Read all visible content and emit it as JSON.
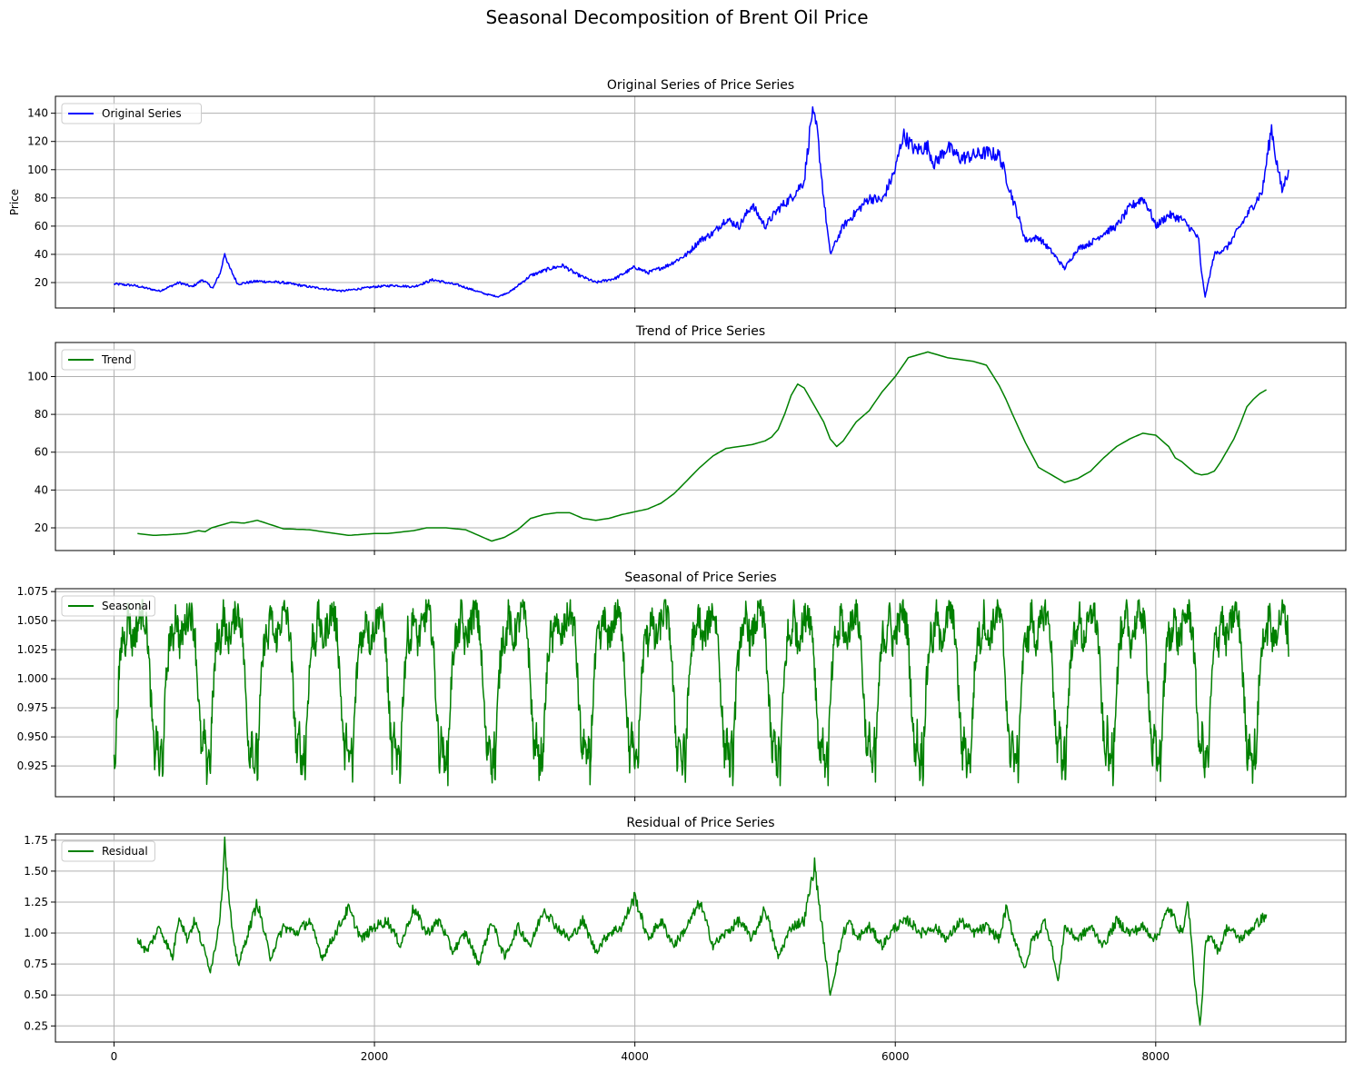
{
  "figure": {
    "title": "Seasonal Decomposition of Brent Oil Price"
  },
  "chart_data": [
    {
      "type": "line",
      "title": "Original Series of Price Series",
      "ylabel": "Price",
      "xlabel": "",
      "xlim": [
        -450,
        9460
      ],
      "ylim": [
        2,
        152
      ],
      "xticks": [
        0,
        2000,
        4000,
        6000,
        8000
      ],
      "xtick_labels_shown": false,
      "yticks": [
        20,
        40,
        60,
        80,
        100,
        120,
        140
      ],
      "ytick_labels": [
        "20",
        "40",
        "60",
        "80",
        "100",
        "120",
        "140"
      ],
      "grid": true,
      "legend_position": "top-left",
      "series": [
        {
          "name": "Original Series",
          "color": "#0000ff",
          "x": [
            0,
            150,
            350,
            500,
            600,
            680,
            760,
            820,
            850,
            880,
            950,
            1100,
            1300,
            1500,
            1750,
            2000,
            2150,
            2300,
            2450,
            2650,
            2850,
            2950,
            3050,
            3200,
            3350,
            3450,
            3550,
            3700,
            3850,
            4000,
            4100,
            4250,
            4400,
            4500,
            4600,
            4700,
            4800,
            4900,
            5000,
            5100,
            5200,
            5300,
            5360,
            5400,
            5450,
            5500,
            5600,
            5700,
            5800,
            5900,
            6000,
            6060,
            6150,
            6250,
            6300,
            6400,
            6500,
            6600,
            6700,
            6800,
            6900,
            7000,
            7100,
            7200,
            7300,
            7400,
            7500,
            7600,
            7700,
            7800,
            7900,
            7950,
            8000,
            8100,
            8200,
            8300,
            8330,
            8350,
            8380,
            8450,
            8550,
            8650,
            8750,
            8820,
            8850,
            8890,
            8920,
            8970,
            9020
          ],
          "y": [
            19,
            18,
            14,
            20,
            17,
            22,
            16,
            28,
            41,
            32,
            19,
            21,
            20,
            17,
            14,
            17,
            18,
            17,
            22,
            18,
            12,
            10,
            14,
            25,
            30,
            32,
            26,
            20,
            23,
            31,
            27,
            32,
            40,
            50,
            55,
            65,
            60,
            75,
            60,
            72,
            80,
            92,
            140,
            128,
            80,
            40,
            60,
            70,
            80,
            78,
            100,
            125,
            114,
            116,
            104,
            116,
            108,
            110,
            112,
            110,
            80,
            50,
            52,
            42,
            30,
            44,
            48,
            55,
            60,
            73,
            80,
            72,
            60,
            68,
            65,
            55,
            50,
            28,
            10,
            40,
            45,
            60,
            75,
            85,
            105,
            130,
            110,
            85,
            100
          ]
        }
      ]
    },
    {
      "type": "line",
      "title": "Trend of Price Series",
      "ylabel": "",
      "xlabel": "",
      "xlim": [
        -450,
        9460
      ],
      "ylim": [
        8,
        118
      ],
      "xticks": [
        0,
        2000,
        4000,
        6000,
        8000
      ],
      "xtick_labels_shown": false,
      "yticks": [
        20,
        40,
        60,
        80,
        100
      ],
      "ytick_labels": [
        "20",
        "40",
        "60",
        "80",
        "100"
      ],
      "grid": true,
      "legend_position": "top-left",
      "series": [
        {
          "name": "Trend",
          "color": "#008000",
          "x": [
            180,
            300,
            450,
            550,
            650,
            700,
            750,
            900,
            1000,
            1100,
            1300,
            1500,
            1600,
            1800,
            2000,
            2100,
            2300,
            2400,
            2550,
            2700,
            2800,
            2900,
            3000,
            3100,
            3200,
            3300,
            3400,
            3500,
            3600,
            3700,
            3800,
            3900,
            4000,
            4100,
            4200,
            4300,
            4400,
            4500,
            4600,
            4700,
            4800,
            4900,
            5000,
            5050,
            5100,
            5150,
            5200,
            5250,
            5300,
            5350,
            5400,
            5450,
            5500,
            5550,
            5600,
            5650,
            5700,
            5800,
            5900,
            6000,
            6100,
            6200,
            6250,
            6300,
            6400,
            6500,
            6600,
            6700,
            6800,
            6850,
            6900,
            7000,
            7100,
            7200,
            7250,
            7300,
            7400,
            7500,
            7600,
            7700,
            7800,
            7900,
            8000,
            8100,
            8150,
            8200,
            8250,
            8300,
            8350,
            8400,
            8450,
            8500,
            8550,
            8600,
            8650,
            8700,
            8750,
            8800,
            8850
          ],
          "y": [
            17,
            16,
            16.5,
            17,
            18.5,
            18,
            20,
            23,
            22.5,
            24,
            19.5,
            19,
            18,
            16,
            17,
            17,
            18.5,
            20,
            20,
            19,
            16,
            13,
            15,
            19,
            25,
            27,
            28,
            28,
            25,
            24,
            25,
            27,
            28.5,
            30,
            33,
            38,
            45,
            52,
            58,
            62,
            63,
            64,
            66,
            68,
            72,
            80,
            90,
            96,
            94,
            88,
            82,
            76,
            67,
            63,
            66,
            71,
            76,
            82,
            92,
            100,
            110,
            112,
            113,
            112,
            110,
            109,
            108,
            106,
            95,
            88,
            80,
            65,
            52,
            48,
            46,
            44,
            46,
            50,
            57,
            63,
            67,
            70,
            69,
            63,
            57,
            55,
            52,
            49,
            48,
            48.5,
            50,
            55,
            61,
            67,
            75,
            84,
            88,
            91,
            93
          ]
        }
      ]
    },
    {
      "type": "line",
      "title": "Seasonal of Price Series",
      "ylabel": "",
      "xlabel": "",
      "xlim": [
        -450,
        9460
      ],
      "ylim": [
        0.8985,
        1.0775
      ],
      "xticks": [
        0,
        2000,
        4000,
        6000,
        8000
      ],
      "xtick_labels_shown": false,
      "yticks": [
        0.925,
        0.95,
        0.975,
        1.0,
        1.025,
        1.05,
        1.075
      ],
      "ytick_labels": [
        "0.925",
        "0.950",
        "0.975",
        "1.000",
        "1.025",
        "1.050",
        "1.075"
      ],
      "grid": true,
      "legend_position": "top-left",
      "series": [
        {
          "name": "Seasonal",
          "color": "#008000",
          "period": 365,
          "x_start": 0,
          "x_end": 9020,
          "cycle_shape": {
            "phase": [
              0,
              0.02,
              0.04,
              0.1,
              0.18,
              0.24,
              0.3,
              0.38,
              0.45,
              0.52,
              0.6,
              0.7,
              0.78,
              0.85,
              0.9,
              0.95,
              1.0
            ],
            "value": [
              0.945,
              0.91,
              0.95,
              1.0,
              1.04,
              1.03,
              1.06,
              1.03,
              1.04,
              1.05,
              1.06,
              1.04,
              0.98,
              0.93,
              0.955,
              0.92,
              0.945
            ]
          },
          "min": 0.908,
          "max": 1.068
        }
      ]
    },
    {
      "type": "line",
      "title": "Residual of Price Series",
      "ylabel": "",
      "xlabel": "",
      "xlim": [
        -450,
        9460
      ],
      "ylim": [
        0.12,
        1.8
      ],
      "xticks": [
        0,
        2000,
        4000,
        6000,
        8000
      ],
      "xtick_labels": [
        "0",
        "2000",
        "4000",
        "6000",
        "8000"
      ],
      "xtick_labels_shown": true,
      "yticks": [
        0.25,
        0.5,
        0.75,
        1.0,
        1.25,
        1.5,
        1.75
      ],
      "ytick_labels": [
        "0.25",
        "0.50",
        "0.75",
        "1.00",
        "1.25",
        "1.50",
        "1.75"
      ],
      "grid": true,
      "legend_position": "top-left",
      "series": [
        {
          "name": "Residual",
          "color": "#008000",
          "x": [
            180,
            250,
            350,
            450,
            500,
            560,
            620,
            680,
            740,
            780,
            820,
            850,
            880,
            920,
            960,
            1000,
            1100,
            1200,
            1300,
            1400,
            1500,
            1600,
            1700,
            1800,
            1900,
            2000,
            2100,
            2200,
            2300,
            2400,
            2500,
            2600,
            2700,
            2800,
            2900,
            3000,
            3100,
            3200,
            3300,
            3400,
            3500,
            3600,
            3700,
            3800,
            3900,
            4000,
            4100,
            4200,
            4300,
            4400,
            4500,
            4600,
            4700,
            4800,
            4900,
            5000,
            5100,
            5200,
            5300,
            5380,
            5420,
            5460,
            5500,
            5560,
            5600,
            5650,
            5700,
            5800,
            5900,
            6000,
            6100,
            6200,
            6300,
            6400,
            6500,
            6600,
            6700,
            6800,
            6850,
            6900,
            7000,
            7050,
            7100,
            7150,
            7200,
            7250,
            7300,
            7400,
            7500,
            7600,
            7700,
            7800,
            7900,
            8000,
            8100,
            8200,
            8250,
            8300,
            8340,
            8360,
            8380,
            8420,
            8480,
            8550,
            8650,
            8750,
            8850
          ],
          "y": [
            0.95,
            0.85,
            1.05,
            0.8,
            1.15,
            0.95,
            1.1,
            0.9,
            0.7,
            0.9,
            1.2,
            1.75,
            1.3,
            0.9,
            0.75,
            0.9,
            1.25,
            0.8,
            1.05,
            1.0,
            1.1,
            0.8,
            1.0,
            1.2,
            0.95,
            1.05,
            1.1,
            0.9,
            1.2,
            1.0,
            1.1,
            0.85,
            1.0,
            0.75,
            1.1,
            0.8,
            1.05,
            0.9,
            1.2,
            1.05,
            0.95,
            1.1,
            0.85,
            1.0,
            1.05,
            1.3,
            0.95,
            1.1,
            0.9,
            1.05,
            1.25,
            0.9,
            1.0,
            1.1,
            0.95,
            1.2,
            0.8,
            1.05,
            1.1,
            1.55,
            1.2,
            0.85,
            0.5,
            0.8,
            1.0,
            1.1,
            0.95,
            1.05,
            0.9,
            1.05,
            1.1,
            1.0,
            1.05,
            0.95,
            1.1,
            1.0,
            1.05,
            0.95,
            1.2,
            1.0,
            0.7,
            0.95,
            1.0,
            1.1,
            0.9,
            0.6,
            1.05,
            0.95,
            1.05,
            0.9,
            1.1,
            1.0,
            1.05,
            0.95,
            1.2,
            1.0,
            1.25,
            0.6,
            0.25,
            0.5,
            0.9,
            1.0,
            0.85,
            1.05,
            0.95,
            1.05,
            1.15
          ]
        }
      ]
    }
  ]
}
